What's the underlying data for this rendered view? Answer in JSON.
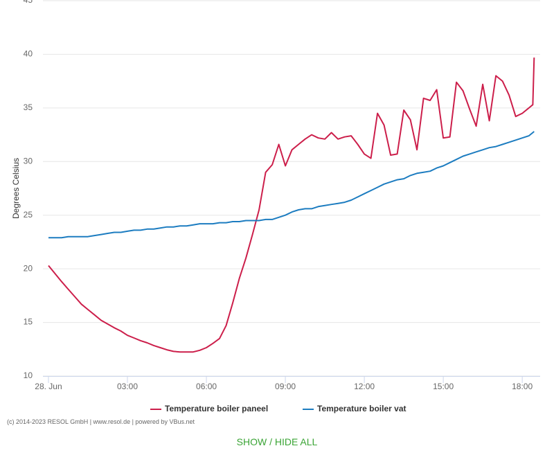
{
  "chart_data": {
    "type": "line",
    "y_label": "Degrees Celsius",
    "x": [
      0,
      0.25,
      0.5,
      0.75,
      1,
      1.25,
      1.5,
      1.75,
      2,
      2.25,
      2.5,
      2.75,
      3,
      3.25,
      3.5,
      3.75,
      4,
      4.25,
      4.5,
      4.75,
      5,
      5.25,
      5.5,
      5.75,
      6,
      6.25,
      6.5,
      6.75,
      7,
      7.25,
      7.5,
      7.75,
      8,
      8.25,
      8.5,
      8.75,
      9,
      9.25,
      9.5,
      9.75,
      10,
      10.25,
      10.5,
      10.75,
      11,
      11.25,
      11.5,
      11.75,
      12,
      12.25,
      12.5,
      12.75,
      13,
      13.25,
      13.5,
      13.75,
      14,
      14.25,
      14.5,
      14.75,
      15,
      15.25,
      15.5,
      15.75,
      16,
      16.25,
      16.5,
      16.75,
      17,
      17.25,
      17.5,
      17.75,
      18,
      18.25,
      18.4,
      18.45
    ],
    "series": [
      {
        "name": "Temperature boiler paneel",
        "color": "#cc1e4a",
        "values": [
          20.3,
          19.55,
          18.8,
          18.1,
          17.4,
          16.7,
          16.2,
          15.7,
          15.2,
          14.85,
          14.5,
          14.2,
          13.8,
          13.55,
          13.3,
          13.1,
          12.85,
          12.65,
          12.45,
          12.3,
          12.25,
          12.25,
          12.25,
          12.4,
          12.65,
          13.05,
          13.5,
          14.7,
          16.8,
          19.1,
          21.0,
          23.2,
          25.5,
          29.0,
          29.7,
          31.6,
          29.6,
          31.1,
          31.6,
          32.1,
          32.5,
          32.2,
          32.1,
          32.7,
          32.1,
          32.3,
          32.4,
          31.6,
          30.7,
          30.3,
          34.5,
          33.4,
          30.6,
          30.7,
          34.8,
          33.9,
          31.1,
          35.9,
          35.7,
          36.7,
          32.2,
          32.3,
          37.4,
          36.6,
          34.9,
          33.3,
          37.2,
          33.8,
          38.0,
          37.5,
          36.2,
          34.2,
          34.5,
          35.0,
          35.3,
          39.7
        ]
      },
      {
        "name": "Temperature boiler vat",
        "color": "#1c7cc0",
        "values": [
          22.9,
          22.9,
          22.9,
          23.0,
          23.0,
          23.0,
          23.0,
          23.1,
          23.2,
          23.3,
          23.4,
          23.4,
          23.5,
          23.6,
          23.6,
          23.7,
          23.7,
          23.8,
          23.9,
          23.9,
          24.0,
          24.0,
          24.1,
          24.2,
          24.2,
          24.2,
          24.3,
          24.3,
          24.4,
          24.4,
          24.5,
          24.5,
          24.5,
          24.6,
          24.6,
          24.8,
          25.0,
          25.3,
          25.5,
          25.6,
          25.6,
          25.8,
          25.9,
          26.0,
          26.1,
          26.2,
          26.4,
          26.7,
          27.0,
          27.3,
          27.6,
          27.9,
          28.1,
          28.3,
          28.4,
          28.7,
          28.9,
          29.0,
          29.1,
          29.4,
          29.6,
          29.9,
          30.2,
          30.5,
          30.7,
          30.9,
          31.1,
          31.3,
          31.4,
          31.6,
          31.8,
          32.0,
          32.2,
          32.4,
          32.7,
          32.8
        ]
      }
    ],
    "xlim": [
      -0.21,
      18.68
    ],
    "xticks": [
      {
        "value": 0,
        "label": "28. Jun"
      },
      {
        "value": 3,
        "label": "03:00"
      },
      {
        "value": 6,
        "label": "06:00"
      },
      {
        "value": 9,
        "label": "09:00"
      },
      {
        "value": 12,
        "label": "12:00"
      },
      {
        "value": 15,
        "label": "15:00"
      },
      {
        "value": 18,
        "label": "18:00"
      }
    ],
    "ylim": [
      10,
      45
    ],
    "yticks": [
      10,
      15,
      20,
      25,
      30,
      35,
      40,
      45
    ],
    "grid": true,
    "legend": "bottom"
  },
  "footer": "(c) 2014-2023 RESOL GmbH | www.resol.de | powered by VBus.net",
  "toggle": "SHOW / HIDE ALL"
}
